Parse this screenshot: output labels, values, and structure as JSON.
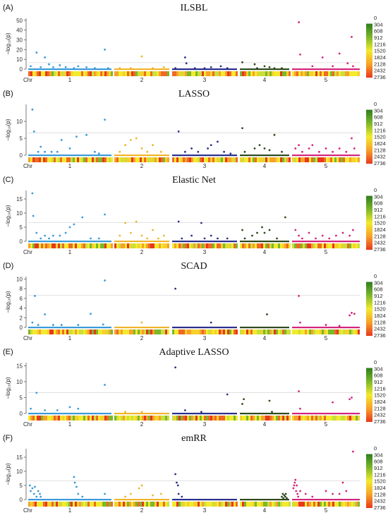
{
  "figure": {
    "ylabel": "−log₁₀(p)",
    "chr_label": "Chr",
    "chromosomes": [
      "1",
      "2",
      "3",
      "4",
      "5"
    ],
    "legend_ticks": [
      "0",
      "304",
      "608",
      "912",
      "1216",
      "1520",
      "1824",
      "2128",
      "2432",
      "2736"
    ]
  },
  "colors": {
    "chr1": "#3a9ad9",
    "chr2": "#f0b429",
    "chr3": "#2b2f8c",
    "chr4": "#2f4a1e",
    "chr5": "#d4247c",
    "threshold_line": "#d8d8d8",
    "legend_top": "#2e7d1e",
    "legend_mid": "#f3ea2e",
    "legend_bottom": "#e8381c"
  },
  "chart_data": [
    {
      "type": "scatter",
      "label": "(A)",
      "title": "ILSBL",
      "yticks": [
        0,
        10,
        20,
        30,
        40,
        50
      ],
      "ylim": [
        0,
        52
      ],
      "threshold": 6.6,
      "series": [
        {
          "chr": "1",
          "points": [
            [
              0.03,
              3
            ],
            [
              0.1,
              17
            ],
            [
              0.15,
              2
            ],
            [
              0.2,
              12
            ],
            [
              0.25,
              5
            ],
            [
              0.3,
              2
            ],
            [
              0.38,
              4
            ],
            [
              0.45,
              2
            ],
            [
              0.55,
              1
            ],
            [
              0.6,
              3
            ],
            [
              0.7,
              2
            ],
            [
              0.8,
              1
            ],
            [
              0.92,
              20
            ],
            [
              0.96,
              1
            ]
          ]
        },
        {
          "chr": "2",
          "points": [
            [
              0.1,
              1
            ],
            [
              0.3,
              1
            ],
            [
              0.5,
              13
            ],
            [
              0.7,
              1
            ],
            [
              0.9,
              2
            ]
          ]
        },
        {
          "chr": "3",
          "points": [
            [
              0.05,
              1
            ],
            [
              0.2,
              12
            ],
            [
              0.22,
              6
            ],
            [
              0.35,
              1
            ],
            [
              0.5,
              1
            ],
            [
              0.6,
              2
            ],
            [
              0.75,
              3
            ],
            [
              0.85,
              1
            ]
          ]
        },
        {
          "chr": "4",
          "points": [
            [
              0.05,
              7
            ],
            [
              0.3,
              5
            ],
            [
              0.35,
              1
            ],
            [
              0.5,
              3
            ],
            [
              0.6,
              2
            ],
            [
              0.7,
              1
            ],
            [
              0.85,
              1
            ]
          ]
        },
        {
          "chr": "5",
          "points": [
            [
              0.1,
              48
            ],
            [
              0.12,
              15
            ],
            [
              0.3,
              3
            ],
            [
              0.45,
              12
            ],
            [
              0.6,
              3
            ],
            [
              0.7,
              16
            ],
            [
              0.82,
              6
            ],
            [
              0.88,
              33
            ],
            [
              0.9,
              3
            ]
          ]
        }
      ]
    },
    {
      "type": "scatter",
      "label": "(B)",
      "title": "LASSO",
      "yticks": [
        0,
        5,
        10
      ],
      "ylim": [
        0,
        15
      ],
      "threshold": 6.6,
      "series": [
        {
          "chr": "1",
          "points": [
            [
              0.05,
              13.5
            ],
            [
              0.07,
              7
            ],
            [
              0.12,
              1
            ],
            [
              0.15,
              2.5
            ],
            [
              0.2,
              1
            ],
            [
              0.28,
              1
            ],
            [
              0.35,
              1
            ],
            [
              0.4,
              4.5
            ],
            [
              0.5,
              2
            ],
            [
              0.58,
              5.5
            ],
            [
              0.7,
              6
            ],
            [
              0.8,
              1
            ],
            [
              0.85,
              0.5
            ],
            [
              0.92,
              10.5
            ]
          ]
        },
        {
          "chr": "2",
          "points": [
            [
              0.1,
              1
            ],
            [
              0.2,
              3
            ],
            [
              0.3,
              4.5
            ],
            [
              0.4,
              5
            ],
            [
              0.5,
              2
            ],
            [
              0.6,
              1
            ],
            [
              0.7,
              3
            ],
            [
              0.85,
              1
            ]
          ]
        },
        {
          "chr": "3",
          "points": [
            [
              0.1,
              7
            ],
            [
              0.2,
              1
            ],
            [
              0.3,
              2
            ],
            [
              0.4,
              1
            ],
            [
              0.55,
              2
            ],
            [
              0.6,
              3
            ],
            [
              0.7,
              4
            ],
            [
              0.8,
              1
            ],
            [
              0.9,
              0.5
            ]
          ]
        },
        {
          "chr": "4",
          "points": [
            [
              0.05,
              8
            ],
            [
              0.1,
              1
            ],
            [
              0.3,
              2
            ],
            [
              0.4,
              3
            ],
            [
              0.5,
              2
            ],
            [
              0.6,
              1.5
            ],
            [
              0.7,
              6
            ],
            [
              0.85,
              1
            ]
          ]
        },
        {
          "chr": "5",
          "points": [
            [
              0.05,
              2
            ],
            [
              0.1,
              3
            ],
            [
              0.15,
              1
            ],
            [
              0.25,
              2
            ],
            [
              0.3,
              3
            ],
            [
              0.4,
              1
            ],
            [
              0.5,
              2
            ],
            [
              0.6,
              1
            ],
            [
              0.7,
              2
            ],
            [
              0.8,
              1
            ],
            [
              0.88,
              5
            ],
            [
              0.92,
              2
            ]
          ]
        }
      ]
    },
    {
      "type": "scatter",
      "label": "(C)",
      "title": "Elastic Net",
      "yticks": [
        0,
        5,
        10,
        15
      ],
      "ylim": [
        0,
        18
      ],
      "threshold": 6.6,
      "series": [
        {
          "chr": "1",
          "points": [
            [
              0.05,
              17
            ],
            [
              0.06,
              9
            ],
            [
              0.1,
              3
            ],
            [
              0.15,
              1
            ],
            [
              0.2,
              2
            ],
            [
              0.25,
              1
            ],
            [
              0.3,
              2
            ],
            [
              0.38,
              2
            ],
            [
              0.45,
              3
            ],
            [
              0.5,
              5
            ],
            [
              0.55,
              6
            ],
            [
              0.65,
              8.5
            ],
            [
              0.75,
              1
            ],
            [
              0.85,
              1
            ],
            [
              0.92,
              9.5
            ]
          ]
        },
        {
          "chr": "2",
          "points": [
            [
              0.1,
              2
            ],
            [
              0.2,
              6.5
            ],
            [
              0.3,
              3
            ],
            [
              0.4,
              7
            ],
            [
              0.5,
              2
            ],
            [
              0.6,
              1
            ],
            [
              0.7,
              4
            ],
            [
              0.8,
              1
            ],
            [
              0.9,
              2
            ]
          ]
        },
        {
          "chr": "3",
          "points": [
            [
              0.1,
              7
            ],
            [
              0.15,
              1
            ],
            [
              0.3,
              2
            ],
            [
              0.45,
              6.5
            ],
            [
              0.5,
              1
            ],
            [
              0.6,
              2
            ],
            [
              0.7,
              1
            ],
            [
              0.85,
              1
            ]
          ]
        },
        {
          "chr": "4",
          "points": [
            [
              0.05,
              4
            ],
            [
              0.1,
              1
            ],
            [
              0.25,
              2
            ],
            [
              0.35,
              3
            ],
            [
              0.45,
              5
            ],
            [
              0.5,
              3
            ],
            [
              0.6,
              4
            ],
            [
              0.75,
              1
            ],
            [
              0.92,
              8.5
            ]
          ]
        },
        {
          "chr": "5",
          "points": [
            [
              0.05,
              4
            ],
            [
              0.1,
              2
            ],
            [
              0.15,
              1
            ],
            [
              0.25,
              3
            ],
            [
              0.35,
              1
            ],
            [
              0.45,
              2
            ],
            [
              0.55,
              1
            ],
            [
              0.65,
              2
            ],
            [
              0.75,
              3
            ],
            [
              0.85,
              2
            ],
            [
              0.9,
              4
            ]
          ]
        }
      ]
    },
    {
      "type": "scatter",
      "label": "(D)",
      "title": "SCAD",
      "yticks": [
        0,
        2,
        4,
        6,
        8,
        10
      ],
      "ylim": [
        0,
        10.5
      ],
      "threshold": 6.6,
      "series": [
        {
          "chr": "1",
          "points": [
            [
              0.05,
              1
            ],
            [
              0.08,
              6.5
            ],
            [
              0.12,
              0.5
            ],
            [
              0.2,
              2.7
            ],
            [
              0.3,
              0.5
            ],
            [
              0.4,
              0.5
            ],
            [
              0.6,
              0.5
            ],
            [
              0.75,
              2.8
            ],
            [
              0.9,
              0.6
            ],
            [
              0.92,
              9.7
            ]
          ]
        },
        {
          "chr": "2",
          "points": [
            [
              0.5,
              1
            ]
          ]
        },
        {
          "chr": "3",
          "points": [
            [
              0.05,
              8
            ],
            [
              0.6,
              1
            ]
          ]
        },
        {
          "chr": "4",
          "points": [
            [
              0.55,
              2.7
            ]
          ]
        },
        {
          "chr": "5",
          "points": [
            [
              0.1,
              6.5
            ],
            [
              0.12,
              1
            ],
            [
              0.5,
              0.5
            ],
            [
              0.7,
              0.3
            ],
            [
              0.85,
              2.5
            ],
            [
              0.88,
              3
            ],
            [
              0.92,
              2.8
            ]
          ]
        }
      ]
    },
    {
      "type": "scatter",
      "label": "(E)",
      "title": "Adaptive LASSO",
      "yticks": [
        0,
        5,
        10,
        15
      ],
      "ylim": [
        0,
        16
      ],
      "threshold": 6.6,
      "series": [
        {
          "chr": "1",
          "points": [
            [
              0.03,
              1.5
            ],
            [
              0.1,
              6.5
            ],
            [
              0.2,
              1
            ],
            [
              0.35,
              1
            ],
            [
              0.5,
              2
            ],
            [
              0.6,
              1.5
            ],
            [
              0.92,
              9
            ]
          ]
        },
        {
          "chr": "2",
          "points": [
            [
              0.2,
              0.5
            ],
            [
              0.5,
              0.5
            ]
          ]
        },
        {
          "chr": "3",
          "points": [
            [
              0.05,
              14.5
            ],
            [
              0.2,
              1
            ],
            [
              0.45,
              0.5
            ],
            [
              0.85,
              6
            ]
          ]
        },
        {
          "chr": "4",
          "points": [
            [
              0.05,
              3
            ],
            [
              0.08,
              4.5
            ],
            [
              0.6,
              4
            ],
            [
              0.65,
              0.5
            ]
          ]
        },
        {
          "chr": "5",
          "points": [
            [
              0.1,
              7
            ],
            [
              0.12,
              1.5
            ],
            [
              0.6,
              3.5
            ],
            [
              0.85,
              4.5
            ],
            [
              0.88,
              5
            ]
          ]
        }
      ]
    },
    {
      "type": "scatter",
      "label": "(F)",
      "title": "emRR",
      "yticks": [
        0,
        5,
        10,
        15
      ],
      "ylim": [
        0,
        18
      ],
      "threshold": 6.6,
      "series": [
        {
          "chr": "1",
          "points": [
            [
              0.02,
              5
            ],
            [
              0.03,
              3
            ],
            [
              0.05,
              4
            ],
            [
              0.07,
              2
            ],
            [
              0.08,
              4.5
            ],
            [
              0.1,
              1
            ],
            [
              0.12,
              3
            ],
            [
              0.14,
              2
            ],
            [
              0.15,
              1
            ],
            [
              0.55,
              8
            ],
            [
              0.56,
              6
            ],
            [
              0.58,
              4.5
            ],
            [
              0.6,
              2
            ],
            [
              0.65,
              1
            ],
            [
              0.92,
              2
            ]
          ]
        },
        {
          "chr": "2",
          "points": [
            [
              0.2,
              1
            ],
            [
              0.3,
              2
            ],
            [
              0.45,
              4
            ],
            [
              0.5,
              5
            ],
            [
              0.7,
              1.5
            ],
            [
              0.85,
              2
            ]
          ]
        },
        {
          "chr": "3",
          "points": [
            [
              0.05,
              9
            ],
            [
              0.07,
              6
            ],
            [
              0.09,
              5
            ],
            [
              0.1,
              2
            ],
            [
              0.15,
              1
            ]
          ]
        },
        {
          "chr": "4",
          "points": [
            [
              0.85,
              1
            ],
            [
              0.87,
              2
            ],
            [
              0.88,
              0.5
            ],
            [
              0.9,
              1.5
            ],
            [
              0.92,
              1
            ],
            [
              0.93,
              2
            ],
            [
              0.95,
              0.5
            ]
          ]
        },
        {
          "chr": "5",
          "points": [
            [
              0.02,
              4
            ],
            [
              0.03,
              5
            ],
            [
              0.04,
              6
            ],
            [
              0.05,
              7
            ],
            [
              0.06,
              3
            ],
            [
              0.07,
              5
            ],
            [
              0.08,
              2
            ],
            [
              0.09,
              1
            ],
            [
              0.12,
              3
            ],
            [
              0.2,
              2
            ],
            [
              0.3,
              1
            ],
            [
              0.5,
              3
            ],
            [
              0.6,
              2
            ],
            [
              0.7,
              2
            ],
            [
              0.75,
              6
            ],
            [
              0.8,
              3
            ],
            [
              0.9,
              17
            ]
          ]
        }
      ]
    }
  ]
}
